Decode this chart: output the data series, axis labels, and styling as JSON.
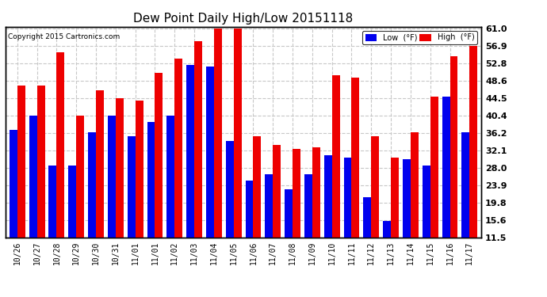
{
  "title": "Dew Point Daily High/Low 20151118",
  "copyright": "Copyright 2015 Cartronics.com",
  "labels": [
    "10/26",
    "10/27",
    "10/28",
    "10/29",
    "10/30",
    "10/31",
    "11/01",
    "11/01",
    "11/02",
    "11/03",
    "11/04",
    "11/05",
    "11/06",
    "11/07",
    "11/08",
    "11/09",
    "11/10",
    "11/11",
    "11/12",
    "11/13",
    "11/14",
    "11/15",
    "11/16",
    "11/17"
  ],
  "low": [
    37.0,
    40.5,
    28.5,
    28.5,
    36.5,
    40.5,
    35.5,
    39.0,
    40.5,
    52.5,
    52.0,
    34.5,
    25.0,
    26.5,
    23.0,
    26.5,
    31.0,
    30.5,
    21.0,
    15.5,
    30.0,
    28.5,
    45.0,
    36.5
  ],
  "high": [
    47.5,
    47.5,
    55.5,
    40.5,
    46.5,
    44.5,
    44.0,
    50.5,
    54.0,
    58.0,
    61.0,
    61.0,
    35.5,
    33.5,
    32.5,
    33.0,
    50.0,
    49.5,
    35.5,
    30.5,
    36.5,
    45.0,
    54.5,
    57.0
  ],
  "ylim_min": 11.5,
  "ylim_max": 61.0,
  "yticks": [
    11.5,
    15.6,
    19.8,
    23.9,
    28.0,
    32.1,
    36.2,
    40.4,
    44.5,
    48.6,
    52.8,
    56.9,
    61.0
  ],
  "low_color": "#0000ee",
  "high_color": "#ee0000",
  "bg_color": "#ffffff",
  "grid_color": "#c8c8c8",
  "bar_width": 0.4
}
